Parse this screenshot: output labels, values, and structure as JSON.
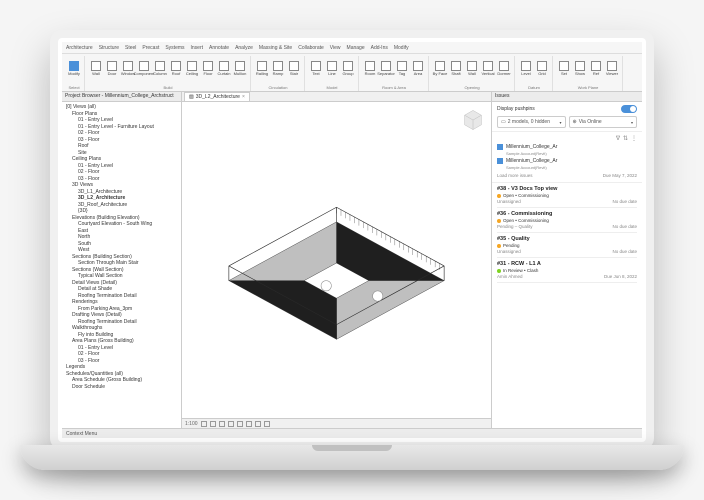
{
  "ribbon_tabs": [
    "Architecture",
    "Structure",
    "Steel",
    "Precast",
    "Systems",
    "Insert",
    "Annotate",
    "Analyze",
    "Massing & Site",
    "Collaborate",
    "View",
    "Manage",
    "Add-Ins",
    "Modify"
  ],
  "ribbon_groups": [
    {
      "label": "Select",
      "buttons": [
        {
          "label": "Modify",
          "accent": true
        }
      ]
    },
    {
      "label": "Build",
      "buttons": [
        {
          "label": "Wall"
        },
        {
          "label": "Door"
        },
        {
          "label": "Window"
        },
        {
          "label": "Component"
        },
        {
          "label": "Column"
        },
        {
          "label": "Roof"
        },
        {
          "label": "Ceiling"
        },
        {
          "label": "Floor"
        },
        {
          "label": "Curtain"
        },
        {
          "label": "Mullion"
        }
      ]
    },
    {
      "label": "Circulation",
      "buttons": [
        {
          "label": "Railing"
        },
        {
          "label": "Ramp"
        },
        {
          "label": "Stair"
        }
      ]
    },
    {
      "label": "Model",
      "buttons": [
        {
          "label": "Text"
        },
        {
          "label": "Line"
        },
        {
          "label": "Group"
        }
      ]
    },
    {
      "label": "Room & Area",
      "buttons": [
        {
          "label": "Room"
        },
        {
          "label": "Separator"
        },
        {
          "label": "Tag"
        },
        {
          "label": "Area"
        }
      ]
    },
    {
      "label": "Opening",
      "buttons": [
        {
          "label": "By Face"
        },
        {
          "label": "Shaft"
        },
        {
          "label": "Wall"
        },
        {
          "label": "Vertical"
        },
        {
          "label": "Dormer"
        }
      ]
    },
    {
      "label": "Datum",
      "buttons": [
        {
          "label": "Level"
        },
        {
          "label": "Grid"
        }
      ]
    },
    {
      "label": "Work Plane",
      "buttons": [
        {
          "label": "Set"
        },
        {
          "label": "Show"
        },
        {
          "label": "Ref"
        },
        {
          "label": "Viewer"
        }
      ]
    }
  ],
  "browser": {
    "title": "Project Browser - Millennium_College_Archstruct",
    "items": [
      {
        "t": "[0] Views (all)",
        "i": 0,
        "b": false
      },
      {
        "t": "Floor Plans",
        "i": 1,
        "b": false
      },
      {
        "t": "01 - Entry Level",
        "i": 2,
        "b": false
      },
      {
        "t": "01 - Entry Level - Furniture Layout",
        "i": 2,
        "b": false
      },
      {
        "t": "02 - Floor",
        "i": 2,
        "b": false
      },
      {
        "t": "03 - Floor",
        "i": 2,
        "b": false
      },
      {
        "t": "Roof",
        "i": 2,
        "b": false
      },
      {
        "t": "Site",
        "i": 2,
        "b": false
      },
      {
        "t": "Ceiling Plans",
        "i": 1,
        "b": false
      },
      {
        "t": "01 - Entry Level",
        "i": 2,
        "b": false
      },
      {
        "t": "02 - Floor",
        "i": 2,
        "b": false
      },
      {
        "t": "03 - Floor",
        "i": 2,
        "b": false
      },
      {
        "t": "3D Views",
        "i": 1,
        "b": false
      },
      {
        "t": "3D_L1_Architecture",
        "i": 2,
        "b": false
      },
      {
        "t": "3D_L2_Architecture",
        "i": 2,
        "b": true
      },
      {
        "t": "3D_Roof_Architecture",
        "i": 2,
        "b": false
      },
      {
        "t": "{3D}",
        "i": 2,
        "b": false
      },
      {
        "t": "Elevations (Building Elevation)",
        "i": 1,
        "b": false
      },
      {
        "t": "Courtyard Elevation - South Wing",
        "i": 2,
        "b": false
      },
      {
        "t": "East",
        "i": 2,
        "b": false
      },
      {
        "t": "North",
        "i": 2,
        "b": false
      },
      {
        "t": "South",
        "i": 2,
        "b": false
      },
      {
        "t": "West",
        "i": 2,
        "b": false
      },
      {
        "t": "Sections (Building Section)",
        "i": 1,
        "b": false
      },
      {
        "t": "Section Through Main Stair",
        "i": 2,
        "b": false
      },
      {
        "t": "Sections (Wall Section)",
        "i": 1,
        "b": false
      },
      {
        "t": "Typical Wall Section",
        "i": 2,
        "b": false
      },
      {
        "t": "Detail Views (Detail)",
        "i": 1,
        "b": false
      },
      {
        "t": "Detail at Shade",
        "i": 2,
        "b": false
      },
      {
        "t": "Roofing Termination Detail",
        "i": 2,
        "b": false
      },
      {
        "t": "Renderings",
        "i": 1,
        "b": false
      },
      {
        "t": "From Parking Area_3pm",
        "i": 2,
        "b": false
      },
      {
        "t": "Drafting Views (Detail)",
        "i": 1,
        "b": false
      },
      {
        "t": "Roofing Termination Detail",
        "i": 2,
        "b": false
      },
      {
        "t": "Walkthroughs",
        "i": 1,
        "b": false
      },
      {
        "t": "Fly into Building",
        "i": 2,
        "b": false
      },
      {
        "t": "Area Plans (Gross Building)",
        "i": 1,
        "b": false
      },
      {
        "t": "01 - Entry Level",
        "i": 2,
        "b": false
      },
      {
        "t": "02 - Floor",
        "i": 2,
        "b": false
      },
      {
        "t": "03 - Floor",
        "i": 2,
        "b": false
      },
      {
        "t": "Legends",
        "i": 0,
        "b": false
      },
      {
        "t": "Schedules/Quantities (all)",
        "i": 0,
        "b": false
      },
      {
        "t": "Area Schedule (Gross Building)",
        "i": 1,
        "b": false
      },
      {
        "t": "Door Schedule",
        "i": 1,
        "b": false
      }
    ]
  },
  "viewport": {
    "tab_label": "3D_L2_Architecture",
    "scale": "1:100",
    "model": {
      "bg": "#ffffff",
      "line": "#2a2a2a",
      "fill_dark": "#1f1f1f",
      "fill_light": "#bfbfbf",
      "verts3d": [
        [
          -1,
          -1,
          0
        ],
        [
          1,
          -1,
          0
        ],
        [
          1,
          1,
          0
        ],
        [
          -1,
          1,
          0
        ],
        [
          -0.3,
          -0.3,
          0
        ],
        [
          0.3,
          -0.3,
          0
        ],
        [
          0.3,
          0.3,
          0
        ],
        [
          -0.3,
          0.3,
          0
        ],
        [
          -1,
          -1,
          0.15
        ],
        [
          1,
          -1,
          0.15
        ],
        [
          1,
          1,
          0.15
        ],
        [
          -1,
          1,
          0.15
        ]
      ],
      "floor_quads": [
        [
          0,
          1,
          5,
          4
        ],
        [
          1,
          2,
          6,
          5
        ],
        [
          2,
          3,
          7,
          6
        ],
        [
          3,
          0,
          4,
          7
        ]
      ],
      "wall_pairs": [
        [
          0,
          8
        ],
        [
          1,
          9
        ],
        [
          2,
          10
        ],
        [
          3,
          11
        ]
      ],
      "top_ring": [
        8,
        9,
        10,
        11
      ]
    }
  },
  "issues": {
    "panel_title": "Issues",
    "toggle_label": "Display pushpins",
    "filter_models": "2 models, 0 hidden",
    "filter_source": "Via Online",
    "models": [
      {
        "name": "Millennium_College_Ar",
        "sub": "Sample Account(Revit)"
      },
      {
        "name": "Millennium_College_Ar",
        "sub": "Sample Account(Revit)"
      }
    ],
    "load_more": "Load more issues",
    "load_more_date": "Due May 7, 2022",
    "items": [
      {
        "title": "#38 - V3 Docs Top view",
        "status": "Open • Commissioning",
        "dot": "#f5a623",
        "assignee": "Unassigned",
        "due": "No due date"
      },
      {
        "title": "#36 - Commissioning",
        "status": "Open • Commissioning",
        "dot": "#f5a623",
        "assignee": "Pending – Quality",
        "due": "No due date"
      },
      {
        "title": "#35 - Quality",
        "status": "Pending",
        "dot": "#f5a623",
        "assignee": "Unassigned",
        "due": "No due date"
      },
      {
        "title": "#31 - RCW - L1 A",
        "status": "In Review • Clash",
        "dot": "#7ed321",
        "assignee": "Amin Ahmed",
        "due": "Due Jun 8, 2022"
      }
    ]
  },
  "statusbar": "Context Menu"
}
